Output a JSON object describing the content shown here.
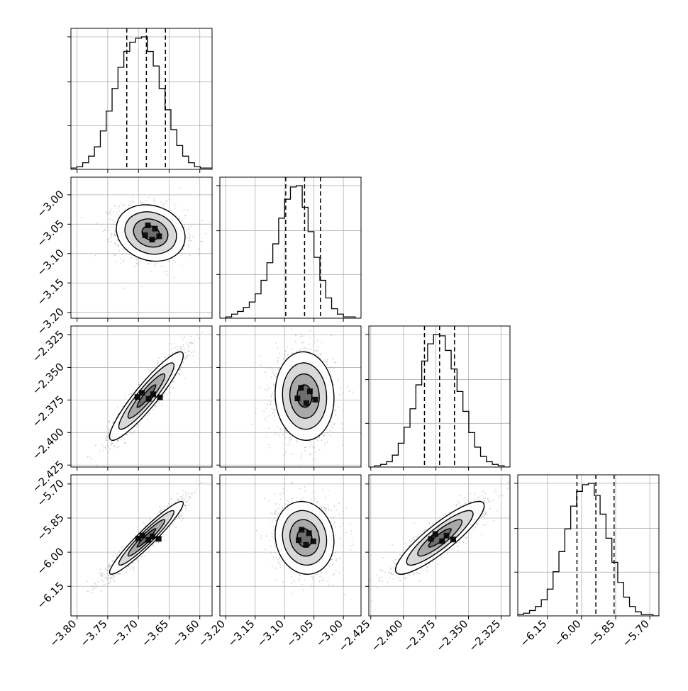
{
  "chart_data": {
    "type": "corner",
    "grid": true,
    "variables": [
      {
        "range": [
          -3.81,
          -3.58
        ],
        "ticks": [
          -3.8,
          -3.75,
          -3.7,
          -3.65,
          -3.6
        ],
        "tick_labels": [
          "−3.80",
          "−3.75",
          "−3.70",
          "−3.65",
          "−3.60"
        ],
        "hist_counts": [
          0.01,
          0.02,
          0.05,
          0.1,
          0.17,
          0.29,
          0.44,
          0.61,
          0.77,
          0.89,
          0.96,
          0.99,
          1.0,
          0.89,
          0.78,
          0.61,
          0.45,
          0.3,
          0.18,
          0.1,
          0.05,
          0.02,
          0.01,
          0.01
        ],
        "quantiles": [
          -3.719,
          -3.687,
          -3.656
        ]
      },
      {
        "range": [
          -3.21,
          -2.97
        ],
        "ticks": [
          -3.2,
          -3.15,
          -3.1,
          -3.05,
          -3.0
        ],
        "tick_labels": [
          "−3.20",
          "−3.15",
          "−3.10",
          "−3.05",
          "−3.00"
        ],
        "hist_counts": [
          0.0,
          0.01,
          0.03,
          0.05,
          0.08,
          0.12,
          0.18,
          0.28,
          0.41,
          0.55,
          0.74,
          0.88,
          0.97,
          0.98,
          0.82,
          0.64,
          0.45,
          0.28,
          0.15,
          0.07,
          0.03,
          0.01,
          0.01,
          0.0
        ],
        "quantiles": [
          -3.098,
          -3.066,
          -3.039
        ]
      },
      {
        "range": [
          -2.4265,
          -2.3182
        ],
        "ticks": [
          -2.425,
          -2.4,
          -2.375,
          -2.35,
          -2.325
        ],
        "tick_labels": [
          "−2.425",
          "−2.400",
          "−2.375",
          "−2.350",
          "−2.325"
        ],
        "hist_counts": [
          0.0,
          0.01,
          0.02,
          0.04,
          0.09,
          0.18,
          0.3,
          0.44,
          0.62,
          0.8,
          0.93,
          1.0,
          0.99,
          0.88,
          0.74,
          0.57,
          0.42,
          0.26,
          0.15,
          0.08,
          0.04,
          0.02,
          0.01,
          0.0
        ],
        "quantiles": [
          -2.3838,
          -2.3722,
          -2.3608
        ]
      },
      {
        "range": [
          -6.28,
          -5.66
        ],
        "ticks": [
          -6.15,
          -6.0,
          -5.85,
          -5.7
        ],
        "tick_labels": [
          "−6.15",
          "−6.00",
          "−5.85",
          "−5.70"
        ],
        "hist_counts": [
          0.01,
          0.02,
          0.04,
          0.07,
          0.12,
          0.2,
          0.33,
          0.48,
          0.65,
          0.82,
          0.93,
          0.98,
          0.99,
          0.9,
          0.76,
          0.58,
          0.4,
          0.25,
          0.14,
          0.07,
          0.03,
          0.01,
          0.01,
          0.0
        ],
        "quantiles": [
          -6.02,
          -5.937,
          -5.857
        ]
      }
    ],
    "pairs": [
      {
        "row": 1,
        "col": 0,
        "mean": [
          -3.68,
          -3.065
        ],
        "sd": [
          0.028,
          0.024
        ],
        "rho": -0.15
      },
      {
        "row": 2,
        "col": 0,
        "mean": [
          -3.687,
          -2.372
        ],
        "sd": [
          0.03,
          0.017
        ],
        "rho": 0.92
      },
      {
        "row": 2,
        "col": 1,
        "mean": [
          -3.066,
          -2.372
        ],
        "sd": [
          0.025,
          0.017
        ],
        "rho": -0.05
      },
      {
        "row": 3,
        "col": 0,
        "mean": [
          -3.687,
          -5.937
        ],
        "sd": [
          0.03,
          0.08
        ],
        "rho": 0.95
      },
      {
        "row": 3,
        "col": 1,
        "mean": [
          -3.066,
          -5.937
        ],
        "sd": [
          0.025,
          0.08
        ],
        "rho": -0.1
      },
      {
        "row": 3,
        "col": 2,
        "mean": [
          -2.372,
          -5.937
        ],
        "sd": [
          0.017,
          0.08
        ],
        "rho": 0.88
      }
    ],
    "contour_levels_sigma": [
      0.5,
      1.0,
      1.5,
      2.0
    ]
  }
}
